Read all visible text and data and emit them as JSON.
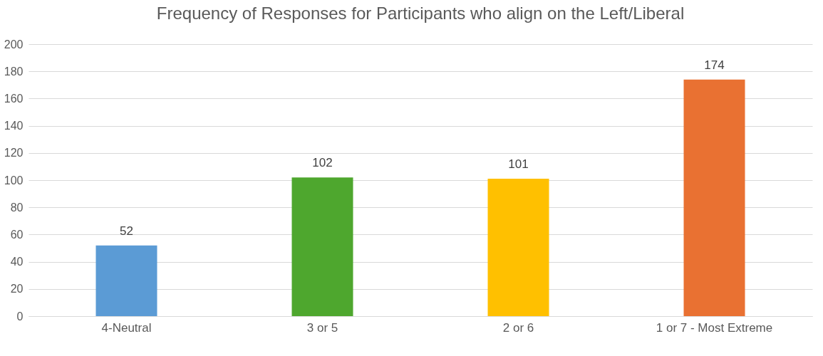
{
  "chart_data": {
    "type": "bar",
    "title": "Frequency of Responses for Participants who align on the Left/Liberal",
    "categories": [
      "4-Neutral",
      "3 or 5",
      "2 or 6",
      "1 or 7 - Most Extreme"
    ],
    "values": [
      52,
      102,
      101,
      174
    ],
    "colors": [
      "#5b9bd5",
      "#4ea72e",
      "#ffc000",
      "#e97132"
    ],
    "ylim": [
      0,
      200
    ],
    "yticks": [
      0,
      20,
      40,
      60,
      80,
      100,
      120,
      140,
      160,
      180,
      200
    ],
    "grid": "y",
    "data_labels": true
  }
}
